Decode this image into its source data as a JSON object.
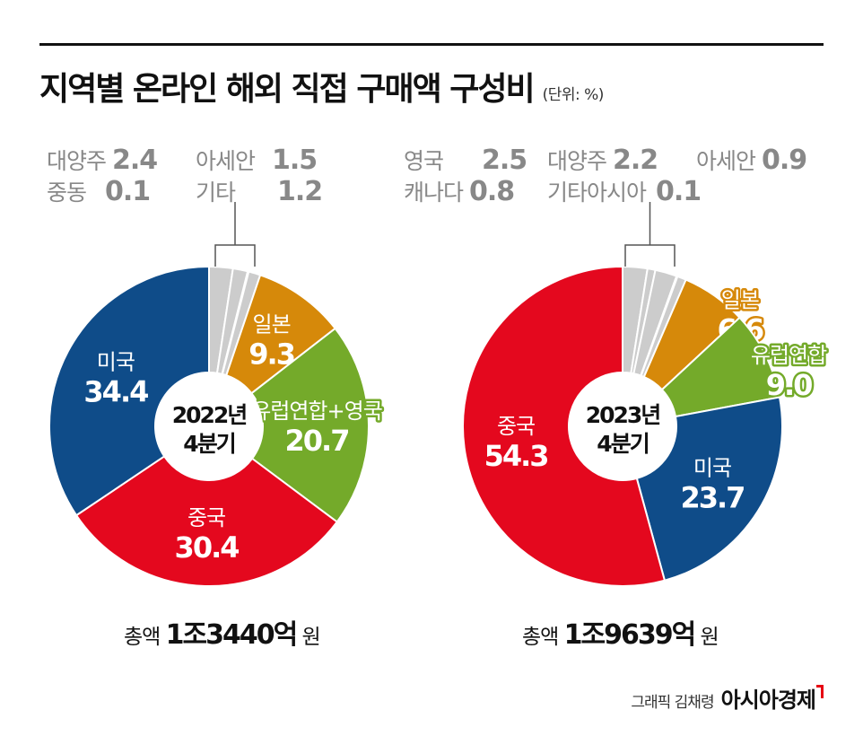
{
  "header": {
    "title": "지역별 온라인 해외 직접 구매액 구성비",
    "unit": "(단위: %)"
  },
  "colors": {
    "blue": "#0f4c89",
    "red": "#e4081e",
    "green": "#74aa2a",
    "orange": "#d6890a",
    "gray": "#cccccc"
  },
  "chart_data": [
    {
      "type": "pie",
      "center_label": [
        "2022년",
        "4분기"
      ],
      "slices": [
        {
          "label": "대양주",
          "value": 2.4,
          "color": "#cccccc"
        },
        {
          "label": "아세안",
          "value": 1.5,
          "color": "#cccccc"
        },
        {
          "label": "중동",
          "value": 0.1,
          "color": "#cccccc"
        },
        {
          "label": "기타",
          "value": 1.2,
          "color": "#cccccc"
        },
        {
          "label": "일본",
          "value": 9.3,
          "color": "#d6890a"
        },
        {
          "label": "유럽연합+영국",
          "value": 20.7,
          "color": "#74aa2a"
        },
        {
          "label": "중국",
          "value": 30.4,
          "color": "#e4081e"
        },
        {
          "label": "미국",
          "value": 34.4,
          "color": "#0f4c89"
        }
      ],
      "total": {
        "prefix": "총액",
        "amount": "1조3440억",
        "suffix": "원"
      }
    },
    {
      "type": "pie",
      "center_label": [
        "2023년",
        "4분기"
      ],
      "slices": [
        {
          "label": "영국",
          "value": 2.5,
          "color": "#cccccc"
        },
        {
          "label": "캐나다",
          "value": 0.8,
          "color": "#cccccc"
        },
        {
          "label": "대양주",
          "value": 2.2,
          "color": "#cccccc"
        },
        {
          "label": "기타아시아",
          "value": 0.1,
          "color": "#cccccc"
        },
        {
          "label": "아세안",
          "value": 0.9,
          "color": "#cccccc"
        },
        {
          "label": "일본",
          "value": 6.6,
          "color": "#d6890a"
        },
        {
          "label": "유럽연합",
          "value": 9.0,
          "color": "#74aa2a"
        },
        {
          "label": "미국",
          "value": 23.7,
          "color": "#0f4c89"
        },
        {
          "label": "중국",
          "value": 54.3,
          "color": "#e4081e"
        }
      ],
      "total": {
        "prefix": "총액",
        "amount": "1조9639억",
        "suffix": "원"
      }
    }
  ],
  "credit": {
    "text": "그래픽 김채령",
    "brand": "아시아경제"
  }
}
